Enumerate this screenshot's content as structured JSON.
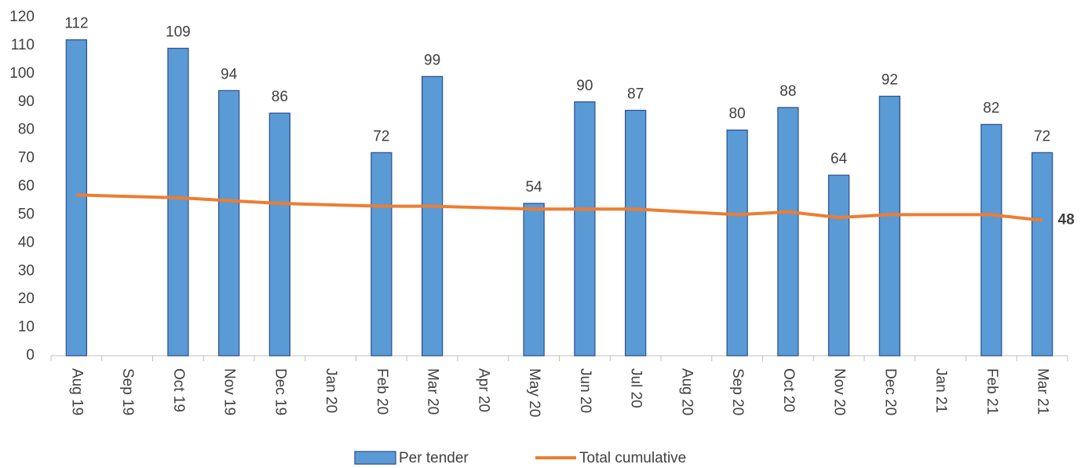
{
  "chart_data": {
    "type": "bar_line",
    "categories": [
      "Aug 19",
      "Sep 19",
      "Oct 19",
      "Nov 19",
      "Dec 19",
      "Jan 20",
      "Feb 20",
      "Mar 20",
      "Apr 20",
      "May 20",
      "Jun 20",
      "Jul 20",
      "Aug 20",
      "Sep 20",
      "Oct 20",
      "Nov 20",
      "Dec 20",
      "Jan 21",
      "Feb 21",
      "Mar 21"
    ],
    "series": [
      {
        "name": "Per tender",
        "type": "bar",
        "color": "#5b9bd5",
        "data_labels": true,
        "values": [
          112,
          null,
          109,
          94,
          86,
          null,
          72,
          99,
          null,
          54,
          90,
          87,
          null,
          80,
          88,
          64,
          92,
          null,
          82,
          72
        ]
      },
      {
        "name": "Total cumulative",
        "type": "line",
        "color": "#ed7d31",
        "label_last": true,
        "values": [
          57,
          56.5,
          56,
          55,
          54,
          53.5,
          53,
          53,
          52.5,
          52,
          52,
          52,
          51,
          50,
          51,
          49,
          50,
          50,
          50,
          48
        ]
      }
    ],
    "ylim": [
      0,
      120
    ],
    "yticks": [
      0,
      10,
      20,
      30,
      40,
      50,
      60,
      70,
      80,
      90,
      100,
      110,
      120
    ],
    "grid": false
  }
}
